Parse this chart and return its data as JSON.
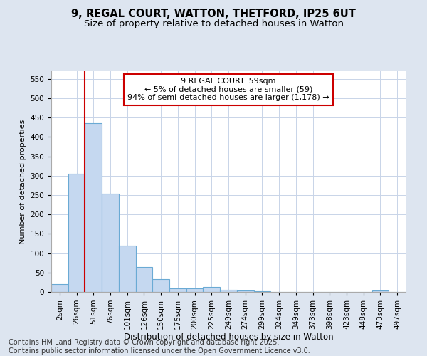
{
  "title_line1": "9, REGAL COURT, WATTON, THETFORD, IP25 6UT",
  "title_line2": "Size of property relative to detached houses in Watton",
  "xlabel": "Distribution of detached houses by size in Watton",
  "ylabel": "Number of detached properties",
  "categories": [
    "2sqm",
    "26sqm",
    "51sqm",
    "76sqm",
    "101sqm",
    "126sqm",
    "150sqm",
    "175sqm",
    "200sqm",
    "225sqm",
    "249sqm",
    "274sqm",
    "299sqm",
    "324sqm",
    "349sqm",
    "373sqm",
    "398sqm",
    "423sqm",
    "448sqm",
    "473sqm",
    "497sqm"
  ],
  "values": [
    20,
    305,
    435,
    253,
    120,
    65,
    33,
    10,
    10,
    12,
    5,
    3,
    1,
    0,
    0,
    0,
    0,
    0,
    0,
    3,
    0
  ],
  "bar_color": "#c5d8f0",
  "bar_edge_color": "#6aaad4",
  "vline_x": 1.5,
  "vline_color": "#cc0000",
  "annotation_text": "9 REGAL COURT: 59sqm\n← 5% of detached houses are smaller (59)\n94% of semi-detached houses are larger (1,178) →",
  "annotation_box_color": "#cc0000",
  "annotation_bg": "#ffffff",
  "ylim": [
    0,
    570
  ],
  "yticks": [
    0,
    50,
    100,
    150,
    200,
    250,
    300,
    350,
    400,
    450,
    500,
    550
  ],
  "grid_color": "#c8d4e8",
  "bg_color": "#dde5f0",
  "plot_bg": "#ffffff",
  "footer_line1": "Contains HM Land Registry data © Crown copyright and database right 2025.",
  "footer_line2": "Contains public sector information licensed under the Open Government Licence v3.0.",
  "title_fontsize": 10.5,
  "subtitle_fontsize": 9.5,
  "footer_fontsize": 7,
  "annotation_fontsize": 8,
  "axis_fontsize": 8,
  "tick_fontsize": 7.5,
  "xlabel_fontsize": 8.5,
  "ylabel_fontsize": 8
}
